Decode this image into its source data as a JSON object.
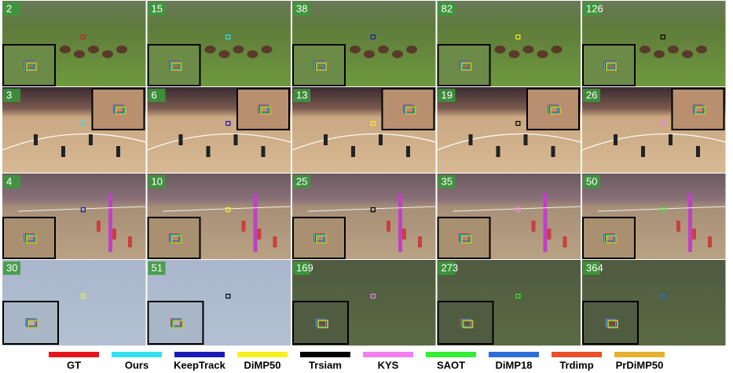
{
  "rows": [
    {
      "frames": [
        2,
        15,
        38,
        82,
        126
      ]
    },
    {
      "frames": [
        3,
        6,
        13,
        19,
        26
      ]
    },
    {
      "frames": [
        4,
        10,
        25,
        35,
        50
      ]
    },
    {
      "frames": [
        30,
        51,
        169,
        273,
        364
      ]
    }
  ],
  "legend": [
    {
      "name": "GT",
      "color": "#e8141c"
    },
    {
      "name": "Ours",
      "color": "#33e0ee"
    },
    {
      "name": "KeepTrack",
      "color": "#1a1ab8"
    },
    {
      "name": "DiMP50",
      "color": "#f5f01e"
    },
    {
      "name": "Trsiam",
      "color": "#000000"
    },
    {
      "name": "KYS",
      "color": "#f27ef2"
    },
    {
      "name": "SAOT",
      "color": "#33ee33"
    },
    {
      "name": "DiMP18",
      "color": "#2e6ed8"
    },
    {
      "name": "Trdimp",
      "color": "#e8502a"
    },
    {
      "name": "PrDiMP50",
      "color": "#e8b030"
    }
  ]
}
